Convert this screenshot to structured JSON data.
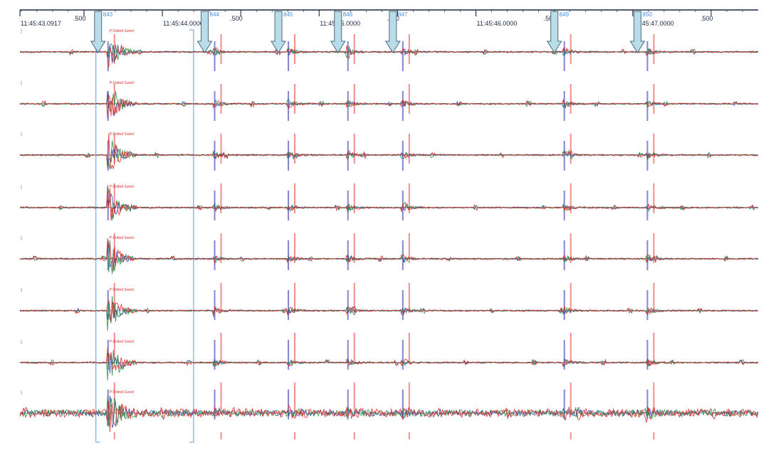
{
  "chart_data": {
    "type": "line",
    "title": "",
    "xlabel": "",
    "ylabel": "",
    "time_axis": {
      "start_seconds": 43.0917,
      "end_seconds": 47.8,
      "ticks": [
        {
          "t": 43.0917,
          "label": "11:45:43.0917"
        },
        {
          "t": 43.5,
          "label": ".500"
        },
        {
          "t": 44.0,
          "label": "11:45:44.0000"
        },
        {
          "t": 44.5,
          "label": ".500"
        },
        {
          "t": 45.0,
          "label": "11:45:45.0000"
        },
        {
          "t": 45.5,
          "label": ".500"
        },
        {
          "t": 46.0,
          "label": "11:45:46.0000"
        },
        {
          "t": 46.5,
          "label": ".500"
        },
        {
          "t": 47.0,
          "label": "11:45:47.0000"
        },
        {
          "t": 47.5,
          "label": ".500"
        }
      ]
    },
    "events": [
      {
        "id": "843",
        "t": 43.59
      },
      {
        "id": "844",
        "t": 44.27
      },
      {
        "id": "845",
        "t": 44.74
      },
      {
        "id": "846",
        "t": 45.12
      },
      {
        "id": "847",
        "t": 45.47
      },
      {
        "id": "849",
        "t": 46.5
      },
      {
        "id": "850",
        "t": 47.03
      }
    ],
    "channels": [
      {
        "index": 1,
        "pick_label": "P Dotted Sured"
      },
      {
        "index": 2,
        "pick_label": "P Dotted Sured"
      },
      {
        "index": 3,
        "pick_label": "P Dotted Sured"
      },
      {
        "index": 4,
        "pick_label": "P Dotted Sured"
      },
      {
        "index": 5,
        "pick_label": "P Dotted Sured"
      },
      {
        "index": 6,
        "pick_label": "P Dotted Sured"
      },
      {
        "index": 7,
        "pick_label": "P Dotted Sured"
      },
      {
        "index": 8,
        "pick_label": "P Dotted Sured"
      }
    ],
    "series_colors": [
      "#e02a2a",
      "#2a3aa8",
      "#1f8a3a"
    ],
    "selection_window": {
      "t_start": 43.59,
      "t_end": 44.14
    },
    "grid": false,
    "legend": "none"
  },
  "colors": {
    "p_pick": "#6f6fd0",
    "s_pick": "#f07a7a",
    "event_arrow_fill": "#b9dde8",
    "event_arrow_stroke": "#4a6b80",
    "axis": "#1b2a44",
    "selection_box": "#5b9bd5"
  }
}
